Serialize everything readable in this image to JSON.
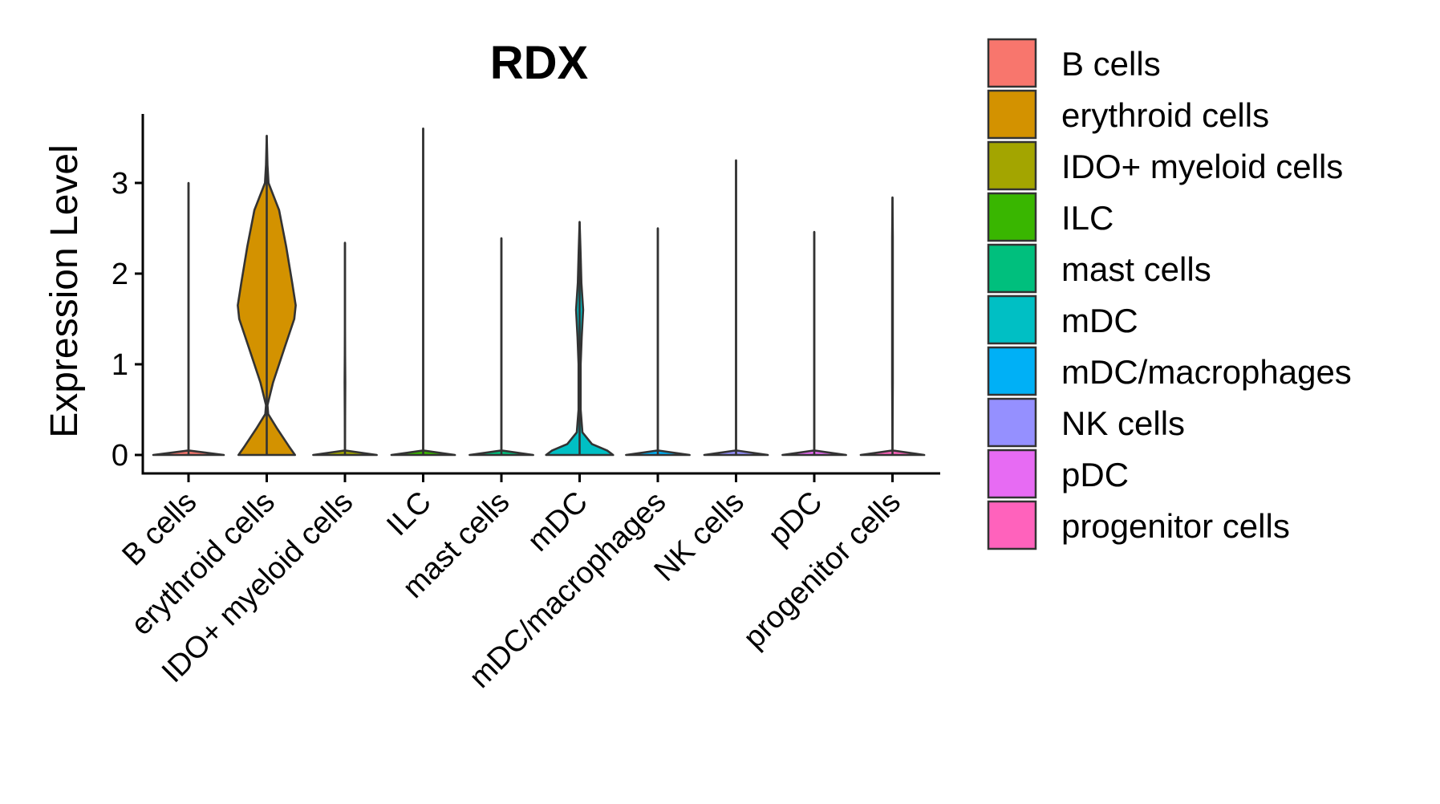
{
  "chart_data": {
    "type": "violin",
    "title": "RDX",
    "xlabel": "",
    "ylabel": "Expression Level",
    "ylim": [
      -0.2,
      3.8
    ],
    "yticks": [
      0,
      1,
      2,
      3
    ],
    "categories": [
      "B cells",
      "erythroid cells",
      "IDO+ myeloid cells",
      "ILC",
      "mast cells",
      "mDC",
      "mDC/macrophages",
      "NK cells",
      "pDC",
      "progenitor cells"
    ],
    "colors": [
      "#F8766D",
      "#D39200",
      "#A3A500",
      "#39B600",
      "#00BF7D",
      "#00BFC4",
      "#00B0F6",
      "#9590FF",
      "#E76BF3",
      "#FF62BC"
    ],
    "max_values": [
      3.0,
      3.52,
      2.34,
      3.6,
      2.39,
      2.57,
      2.5,
      3.25,
      2.46,
      2.84
    ],
    "densities": [
      [
        [
          0,
          1.0
        ],
        [
          0.05,
          0.0
        ],
        [
          3.0,
          0.0
        ]
      ],
      [
        [
          0,
          0.8
        ],
        [
          0.1,
          0.62
        ],
        [
          0.3,
          0.28
        ],
        [
          0.45,
          0.04
        ],
        [
          0.55,
          0.02
        ],
        [
          0.8,
          0.18
        ],
        [
          1.2,
          0.52
        ],
        [
          1.5,
          0.78
        ],
        [
          1.65,
          0.82
        ],
        [
          1.9,
          0.72
        ],
        [
          2.3,
          0.55
        ],
        [
          2.7,
          0.35
        ],
        [
          3.0,
          0.05
        ],
        [
          3.2,
          0.02
        ],
        [
          3.52,
          0.0
        ]
      ],
      [
        [
          0,
          0.9
        ],
        [
          0.05,
          0.0
        ],
        [
          0.8,
          0.01
        ],
        [
          1.4,
          0.0
        ],
        [
          2.34,
          0.0
        ]
      ],
      [
        [
          0,
          0.9
        ],
        [
          0.05,
          0.0
        ],
        [
          3.6,
          0.0
        ]
      ],
      [
        [
          0,
          0.9
        ],
        [
          0.05,
          0.0
        ],
        [
          2.39,
          0.0
        ]
      ],
      [
        [
          0,
          0.95
        ],
        [
          0.05,
          0.78
        ],
        [
          0.12,
          0.35
        ],
        [
          0.25,
          0.08
        ],
        [
          0.5,
          0.03
        ],
        [
          1.0,
          0.03
        ],
        [
          1.3,
          0.06
        ],
        [
          1.6,
          0.1
        ],
        [
          1.9,
          0.05
        ],
        [
          2.2,
          0.03
        ],
        [
          2.57,
          0.0
        ]
      ],
      [
        [
          0,
          0.9
        ],
        [
          0.05,
          0.0
        ],
        [
          2.5,
          0.0
        ]
      ],
      [
        [
          0,
          0.9
        ],
        [
          0.05,
          0.0
        ],
        [
          3.25,
          0.0
        ]
      ],
      [
        [
          0,
          0.9
        ],
        [
          0.05,
          0.0
        ],
        [
          2.46,
          0.0
        ]
      ],
      [
        [
          0,
          0.9
        ],
        [
          0.05,
          0.0
        ],
        [
          0.8,
          0.01
        ],
        [
          2.4,
          0.01
        ],
        [
          2.84,
          0.0
        ]
      ]
    ],
    "legend": {
      "position": "right",
      "entries": [
        "B cells",
        "erythroid cells",
        "IDO+ myeloid cells",
        "ILC",
        "mast cells",
        "mDC",
        "mDC/macrophages",
        "NK cells",
        "pDC",
        "progenitor cells"
      ]
    }
  }
}
